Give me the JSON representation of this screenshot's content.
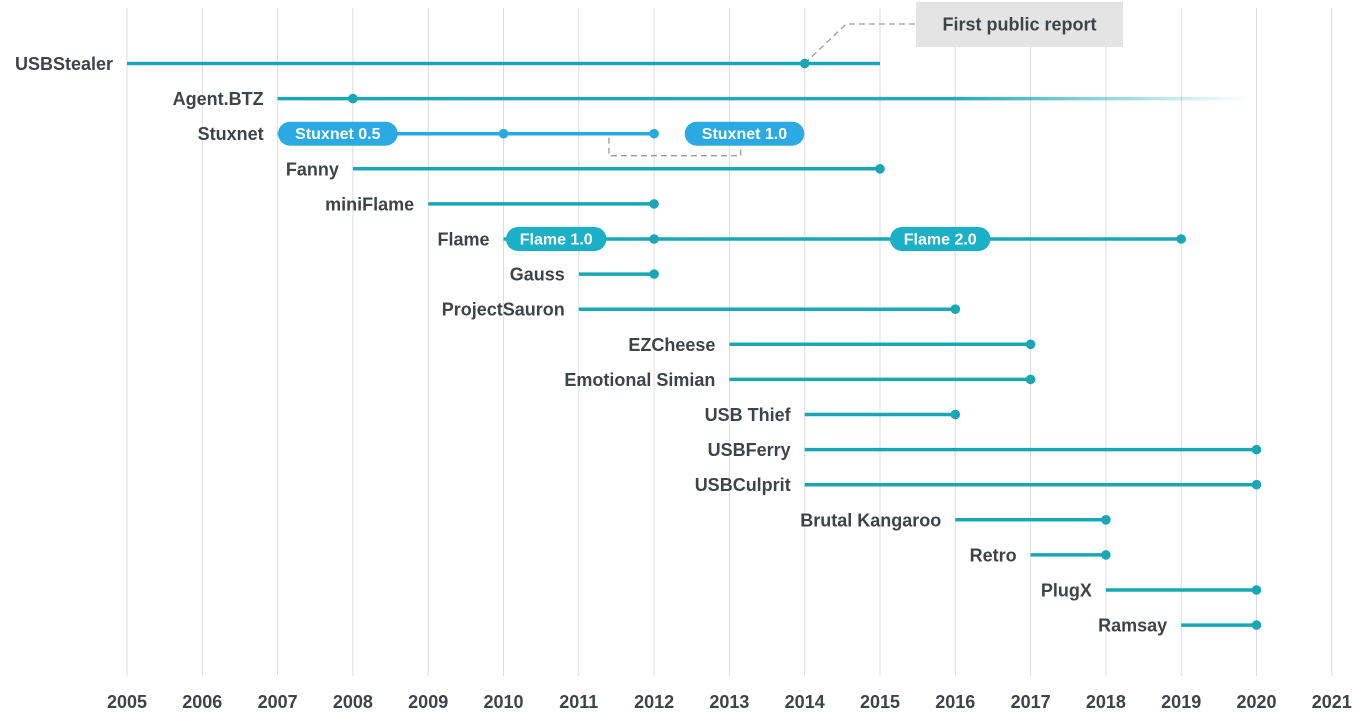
{
  "chart_data": {
    "type": "timeline",
    "title": "",
    "xlabel": "",
    "ylabel": "",
    "xlim": [
      2005,
      2021
    ],
    "ticks": [
      "2005",
      "2006",
      "2007",
      "2008",
      "2009",
      "2010",
      "2011",
      "2012",
      "2013",
      "2014",
      "2015",
      "2016",
      "2017",
      "2018",
      "2019",
      "2020",
      "2021"
    ],
    "grid": "vertical",
    "colors": {
      "bar": "#1aa7b5",
      "stuxnet_bar": "#28a9e0",
      "pill": "#1ab0c8",
      "stuxnet_pill": "#2aa9e3",
      "axis_text": "#3d4449",
      "grid": "#dcdcdc",
      "callout_box": "#e4e4e4"
    },
    "series": [
      {
        "name": "USBStealer",
        "start": 2005,
        "end": 2015,
        "markers": [
          2014
        ]
      },
      {
        "name": "Agent.BTZ",
        "start": 2007,
        "end": 2020,
        "markers": [
          2008
        ],
        "fade_end": true
      },
      {
        "name": "Stuxnet",
        "start": 2007,
        "end": 2012,
        "markers": [
          2010,
          2012
        ]
      },
      {
        "name": "Fanny",
        "start": 2008,
        "end": 2015,
        "markers": [
          2015
        ]
      },
      {
        "name": "miniFlame",
        "start": 2009,
        "end": 2012,
        "markers": [
          2012
        ]
      },
      {
        "name": "Flame",
        "start": 2010,
        "end": 2019,
        "markers": [
          2012,
          2019
        ]
      },
      {
        "name": "Gauss",
        "start": 2011,
        "end": 2012,
        "markers": [
          2012
        ]
      },
      {
        "name": "ProjectSauron",
        "start": 2011,
        "end": 2016,
        "markers": [
          2016
        ]
      },
      {
        "name": "EZCheese",
        "start": 2013,
        "end": 2017,
        "markers": [
          2017
        ]
      },
      {
        "name": "Emotional Simian",
        "start": 2013,
        "end": 2017,
        "markers": [
          2017
        ]
      },
      {
        "name": "USB Thief",
        "start": 2014,
        "end": 2016,
        "markers": [
          2016
        ]
      },
      {
        "name": "USBFerry",
        "start": 2014,
        "end": 2020,
        "markers": [
          2020
        ]
      },
      {
        "name": "USBCulprit",
        "start": 2014,
        "end": 2020,
        "markers": [
          2020
        ]
      },
      {
        "name": "Brutal Kangaroo",
        "start": 2016,
        "end": 2018,
        "markers": [
          2018
        ]
      },
      {
        "name": "Retro",
        "start": 2017,
        "end": 2018,
        "markers": [
          2018
        ]
      },
      {
        "name": "PlugX",
        "start": 2018,
        "end": 2020,
        "markers": [
          2020
        ]
      },
      {
        "name": "Ramsay",
        "start": 2019,
        "end": 2020,
        "markers": [
          2020
        ]
      }
    ],
    "version_labels": [
      {
        "series": "Stuxnet",
        "text": "Stuxnet 0.5",
        "center": 2007.8
      },
      {
        "series": "Stuxnet",
        "text": "Stuxnet 1.0",
        "center": 2013.2
      },
      {
        "series": "Flame",
        "text": "Flame 1.0",
        "center": 2010.7
      },
      {
        "series": "Flame",
        "text": "Flame 2.0",
        "center": 2015.8
      }
    ],
    "annotation": {
      "text": "First public report",
      "points_to_series": "USBStealer",
      "points_to_year": 2014
    }
  }
}
